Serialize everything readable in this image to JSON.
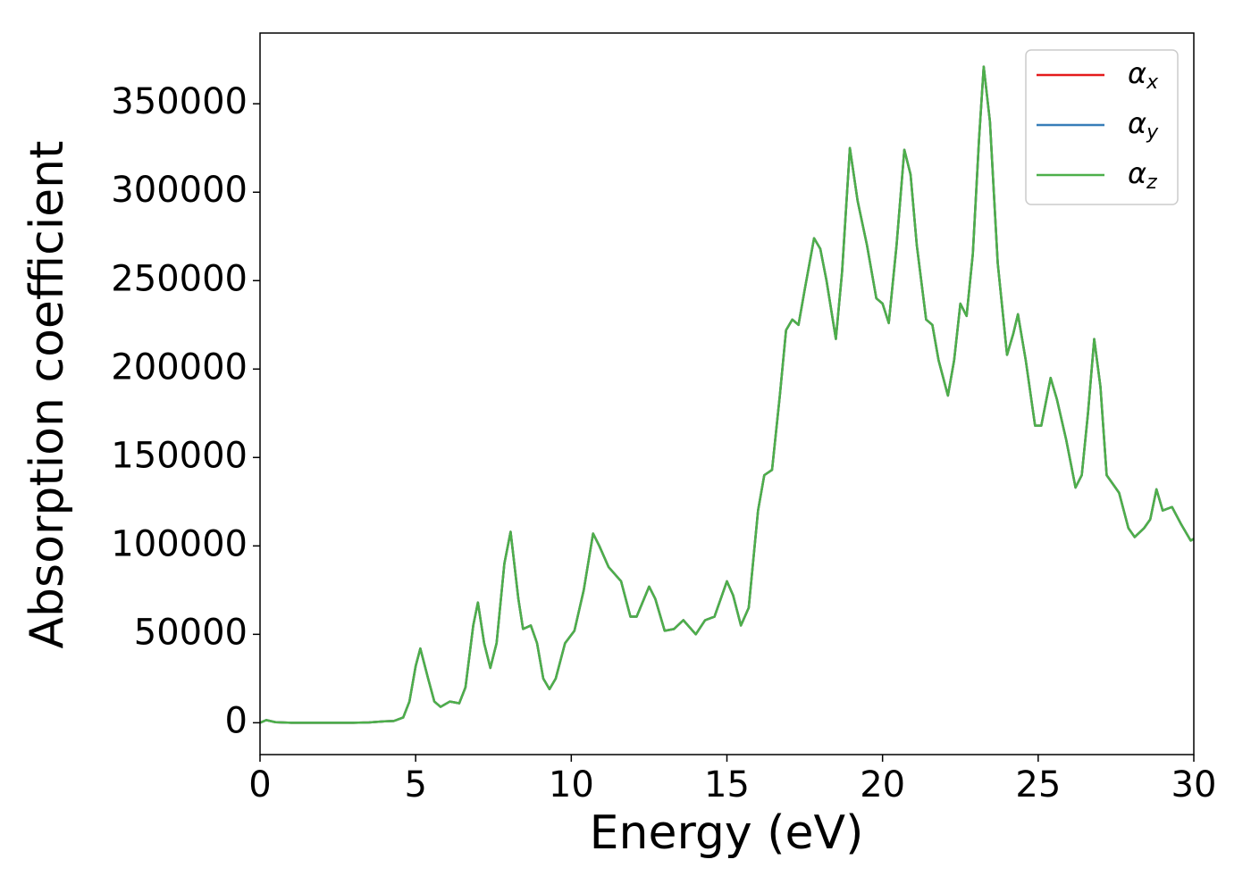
{
  "chart_data": {
    "type": "line",
    "xlabel": "Energy (eV)",
    "ylabel": "Absorption coefficient",
    "x": [
      0,
      0.2,
      0.5,
      1,
      2,
      3,
      3.5,
      4,
      4.3,
      4.6,
      4.8,
      5.0,
      5.15,
      5.4,
      5.6,
      5.8,
      6.1,
      6.4,
      6.6,
      6.85,
      7.0,
      7.2,
      7.4,
      7.6,
      7.85,
      8.05,
      8.3,
      8.45,
      8.7,
      8.9,
      9.1,
      9.3,
      9.5,
      9.8,
      10.1,
      10.4,
      10.7,
      10.9,
      11.2,
      11.6,
      11.9,
      12.1,
      12.5,
      12.7,
      13.0,
      13.3,
      13.6,
      14.0,
      14.3,
      14.6,
      15.0,
      15.2,
      15.45,
      15.7,
      16.0,
      16.2,
      16.45,
      16.7,
      16.9,
      17.1,
      17.3,
      17.5,
      17.8,
      18.0,
      18.2,
      18.5,
      18.7,
      18.95,
      19.2,
      19.5,
      19.8,
      20.0,
      20.2,
      20.45,
      20.7,
      20.9,
      21.1,
      21.4,
      21.6,
      21.8,
      22.1,
      22.3,
      22.5,
      22.7,
      22.9,
      23.1,
      23.25,
      23.45,
      23.7,
      24.0,
      24.2,
      24.35,
      24.6,
      24.9,
      25.1,
      25.4,
      25.6,
      25.9,
      26.2,
      26.4,
      26.6,
      26.8,
      27.0,
      27.2,
      27.4,
      27.6,
      27.9,
      28.1,
      28.4,
      28.6,
      28.8,
      29.0,
      29.3,
      29.6,
      29.9,
      30
    ],
    "series": [
      {
        "name": "αx",
        "color": "#e41a1c",
        "values": [
          0,
          1500,
          300,
          0,
          0,
          0,
          200,
          800,
          1000,
          3000,
          12000,
          32000,
          42000,
          25000,
          12000,
          9000,
          12000,
          11000,
          20000,
          55000,
          68000,
          45000,
          31000,
          45000,
          90000,
          108000,
          70000,
          53000,
          55000,
          45000,
          25000,
          19000,
          25000,
          45000,
          52000,
          75000,
          107000,
          100000,
          88000,
          80000,
          60000,
          60000,
          77000,
          70000,
          52000,
          53000,
          58000,
          50000,
          58000,
          60000,
          80000,
          72000,
          55000,
          65000,
          120000,
          140000,
          143000,
          185000,
          222000,
          228000,
          225000,
          245000,
          274000,
          268000,
          250000,
          217000,
          255000,
          325000,
          295000,
          270000,
          240000,
          237000,
          226000,
          270000,
          324000,
          310000,
          270000,
          228000,
          225000,
          205000,
          185000,
          205000,
          237000,
          230000,
          265000,
          330000,
          371000,
          340000,
          260000,
          208000,
          220000,
          231000,
          205000,
          168000,
          168000,
          195000,
          183000,
          160000,
          133000,
          140000,
          175000,
          217000,
          190000,
          140000,
          135000,
          130000,
          110000,
          105000,
          110000,
          115000,
          132000,
          120000,
          122000,
          112000,
          103000,
          104000
        ]
      },
      {
        "name": "αy",
        "color": "#377eb8",
        "values": [
          0,
          1500,
          300,
          0,
          0,
          0,
          200,
          800,
          1000,
          3000,
          12000,
          32000,
          42000,
          25000,
          12000,
          9000,
          12000,
          11000,
          20000,
          55000,
          68000,
          45000,
          31000,
          45000,
          90000,
          108000,
          70000,
          53000,
          55000,
          45000,
          25000,
          19000,
          25000,
          45000,
          52000,
          75000,
          107000,
          100000,
          88000,
          80000,
          60000,
          60000,
          77000,
          70000,
          52000,
          53000,
          58000,
          50000,
          58000,
          60000,
          80000,
          72000,
          55000,
          65000,
          120000,
          140000,
          143000,
          185000,
          222000,
          228000,
          225000,
          245000,
          274000,
          268000,
          250000,
          217000,
          255000,
          325000,
          295000,
          270000,
          240000,
          237000,
          226000,
          270000,
          324000,
          310000,
          270000,
          228000,
          225000,
          205000,
          185000,
          205000,
          237000,
          230000,
          265000,
          330000,
          371000,
          340000,
          260000,
          208000,
          220000,
          231000,
          205000,
          168000,
          168000,
          195000,
          183000,
          160000,
          133000,
          140000,
          175000,
          217000,
          190000,
          140000,
          135000,
          130000,
          110000,
          105000,
          110000,
          115000,
          132000,
          120000,
          122000,
          112000,
          103000,
          104000
        ]
      },
      {
        "name": "αz",
        "color": "#4daf4a",
        "values": [
          0,
          1500,
          300,
          0,
          0,
          0,
          200,
          800,
          1000,
          3000,
          12000,
          32000,
          42000,
          25000,
          12000,
          9000,
          12000,
          11000,
          20000,
          55000,
          68000,
          45000,
          31000,
          45000,
          90000,
          108000,
          70000,
          53000,
          55000,
          45000,
          25000,
          19000,
          25000,
          45000,
          52000,
          75000,
          107000,
          100000,
          88000,
          80000,
          60000,
          60000,
          77000,
          70000,
          52000,
          53000,
          58000,
          50000,
          58000,
          60000,
          80000,
          72000,
          55000,
          65000,
          120000,
          140000,
          143000,
          185000,
          222000,
          228000,
          225000,
          245000,
          274000,
          268000,
          250000,
          217000,
          255000,
          325000,
          295000,
          270000,
          240000,
          237000,
          226000,
          270000,
          324000,
          310000,
          270000,
          228000,
          225000,
          205000,
          185000,
          205000,
          237000,
          230000,
          265000,
          330000,
          371000,
          340000,
          260000,
          208000,
          220000,
          231000,
          205000,
          168000,
          168000,
          195000,
          183000,
          160000,
          133000,
          140000,
          175000,
          217000,
          190000,
          140000,
          135000,
          130000,
          110000,
          105000,
          110000,
          115000,
          132000,
          120000,
          122000,
          112000,
          103000,
          104000
        ]
      }
    ],
    "xlim": [
      0,
      30
    ],
    "xticks": [
      0,
      5,
      10,
      15,
      20,
      25,
      30
    ],
    "ylim": [
      -18000,
      390000
    ],
    "yticks": [
      0,
      50000,
      100000,
      150000,
      200000,
      250000,
      300000,
      350000
    ],
    "grid": false,
    "legend": "upper right"
  }
}
